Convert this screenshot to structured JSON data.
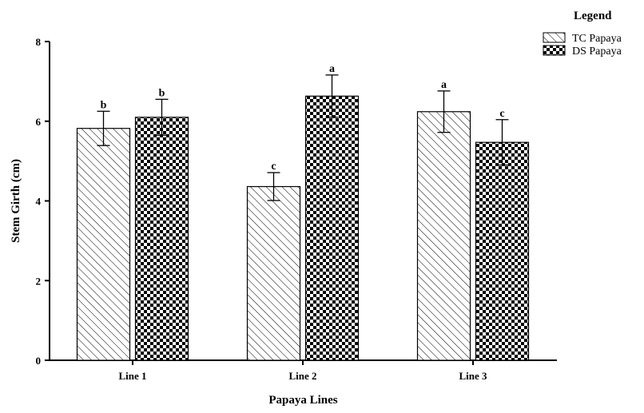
{
  "chart_data": {
    "type": "bar",
    "title": "",
    "xlabel": "Papaya Lines",
    "ylabel": "Stem Girth (cm)",
    "categories": [
      "Line 1",
      "Line 2",
      "Line 3"
    ],
    "ylim": [
      0,
      8
    ],
    "yticks": [
      0,
      2,
      4,
      6,
      8
    ],
    "grid": false,
    "legend": {
      "title": "Legend",
      "position": "top-right"
    },
    "series": [
      {
        "name": "TC Papaya",
        "pattern": "diagonal-hatch",
        "values": [
          5.82,
          4.36,
          6.24
        ],
        "errors": [
          0.43,
          0.35,
          0.52
        ],
        "letters": [
          "b",
          "c",
          "a"
        ]
      },
      {
        "name": "DS Papaya",
        "pattern": "checkerboard",
        "values": [
          6.1,
          6.63,
          5.47
        ],
        "errors": [
          0.45,
          0.53,
          0.57
        ],
        "letters": [
          "b",
          "a",
          "c"
        ]
      }
    ]
  }
}
